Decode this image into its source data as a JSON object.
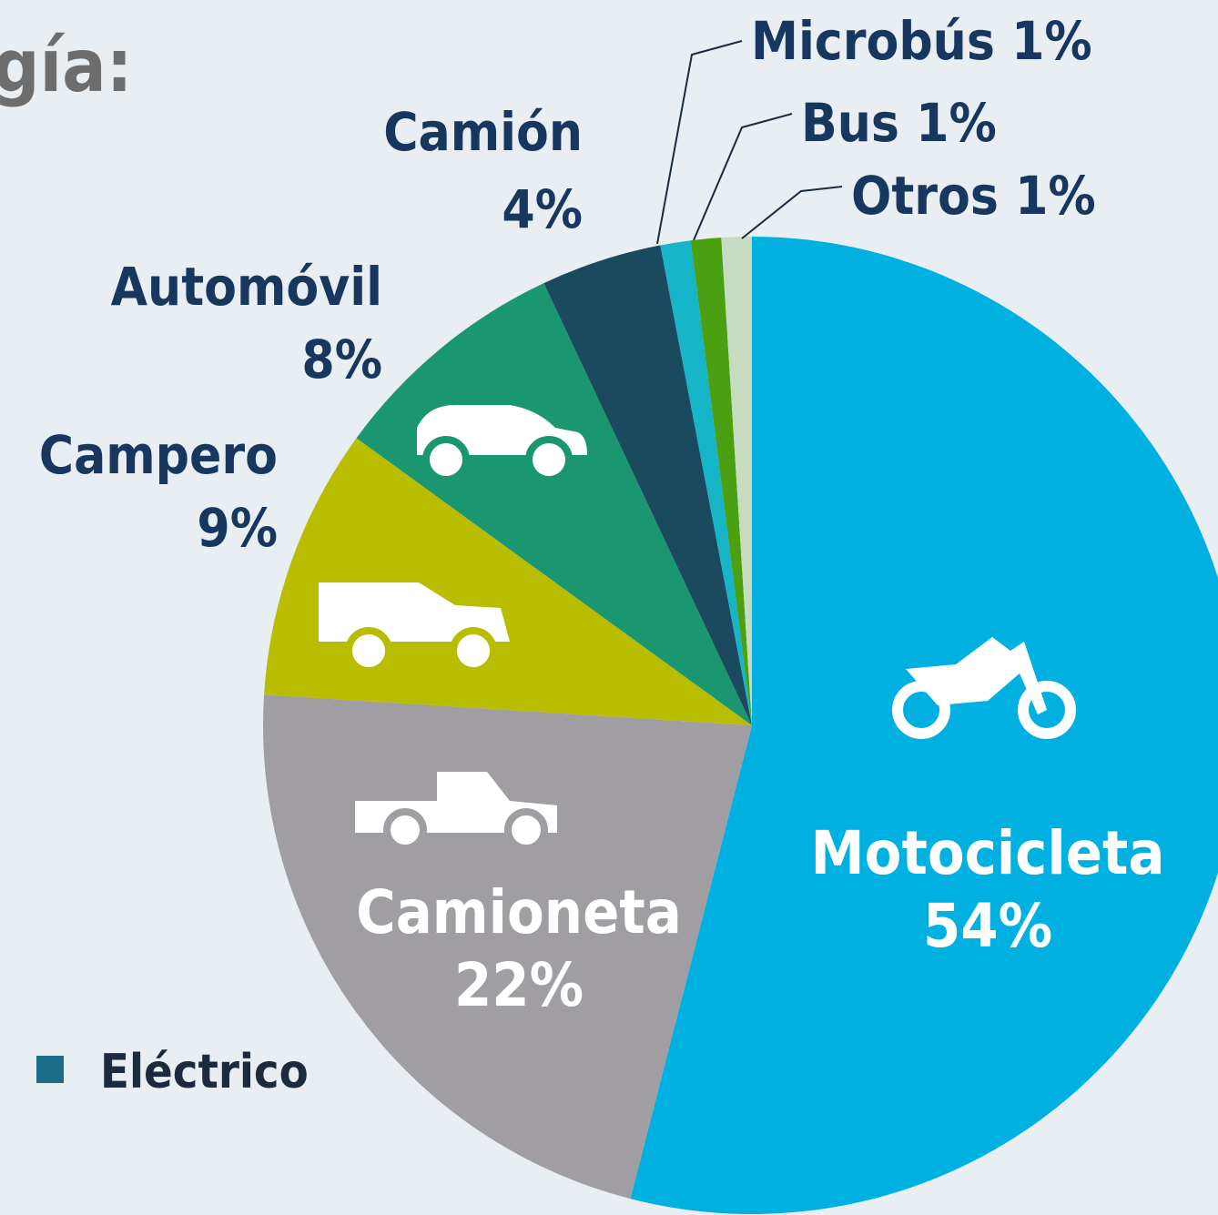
{
  "title": "gía:",
  "chart_data": {
    "type": "pie",
    "categories": [
      "Motocicleta",
      "Camioneta",
      "Campero",
      "Automóvil",
      "Camión",
      "Microbús",
      "Bus",
      "Otros"
    ],
    "values": [
      54,
      22,
      9,
      8,
      4,
      1,
      1,
      1
    ],
    "value_labels": [
      "54%",
      "22%",
      "9%",
      "8%",
      "4%",
      "1%",
      "1%",
      "1%"
    ],
    "colors": [
      "#00b0e0",
      "#a09ea3",
      "#b9bd00",
      "#1a9670",
      "#1b4a5e",
      "#17b5c8",
      "#4aa010",
      "#c5dcc0"
    ]
  },
  "legend": {
    "label": "Eléctrico",
    "color": "#1b6e86"
  }
}
